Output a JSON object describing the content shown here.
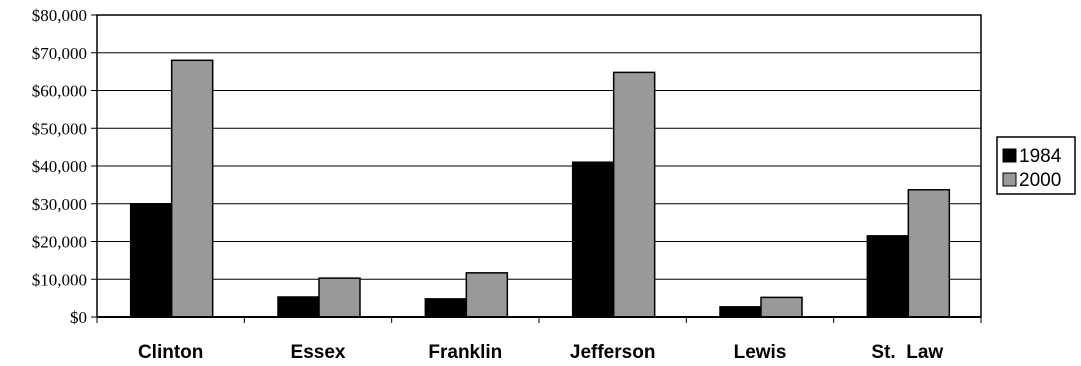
{
  "chart_data": {
    "type": "bar",
    "categories": [
      "Clinton",
      "Essex",
      "Franklin",
      "Jefferson",
      "Lewis",
      "St.  Law"
    ],
    "series": [
      {
        "name": "1984",
        "values": [
          30000,
          5300,
          4800,
          41000,
          2700,
          21500
        ],
        "color": "#000000"
      },
      {
        "name": "2000",
        "values": [
          68000,
          10300,
          11700,
          64800,
          5200,
          33700
        ],
        "color": "#999999"
      }
    ],
    "yticks": [
      "$0",
      "$10,000",
      "$20,000",
      "$30,000",
      "$40,000",
      "$50,000",
      "$60,000",
      "$70,000",
      "$80,000"
    ],
    "ylim": [
      0,
      80000
    ],
    "grid": true,
    "legend": "right",
    "title": "",
    "xlabel": "",
    "ylabel": ""
  }
}
